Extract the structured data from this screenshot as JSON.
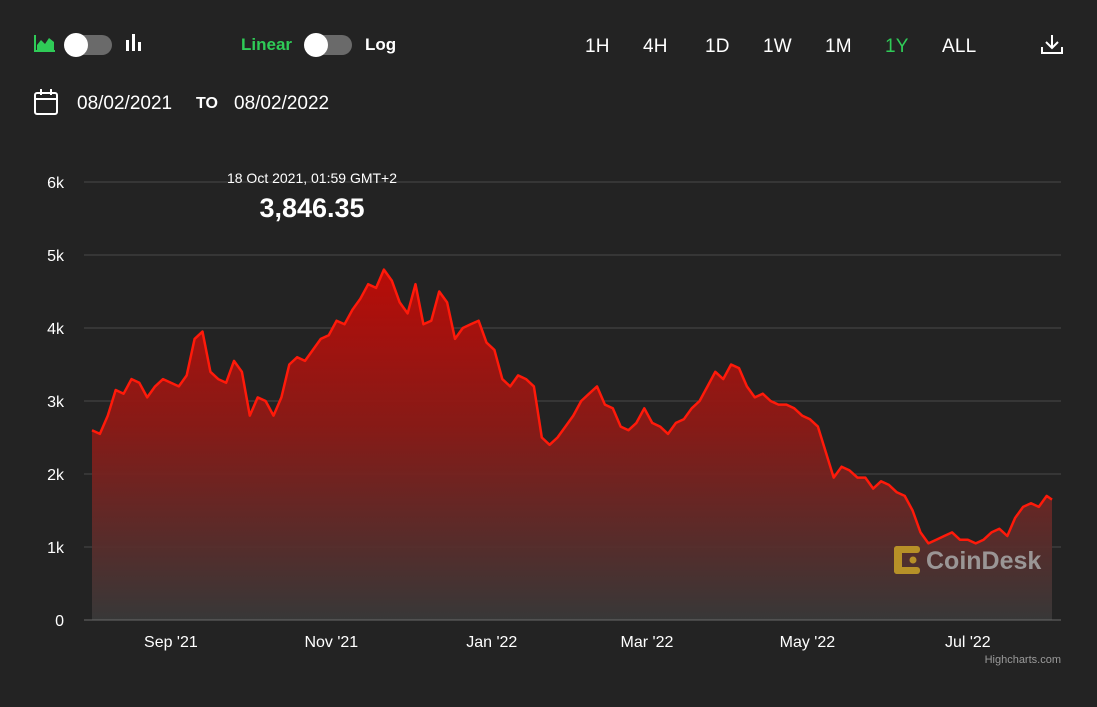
{
  "toolbar": {
    "chart_type_icons": [
      "area-chart-icon",
      "bar-chart-icon"
    ],
    "scale_linear_label": "Linear",
    "scale_log_label": "Log",
    "ranges": [
      "1H",
      "4H",
      "1D",
      "1W",
      "1M",
      "1Y",
      "ALL"
    ],
    "active_range": "1Y",
    "download_icon": "download-icon"
  },
  "date_range": {
    "from": "08/02/2021",
    "to_label": "TO",
    "to": "08/02/2022"
  },
  "tooltip": {
    "date": "18 Oct 2021, 01:59 GMT+2",
    "value": "3,846.35"
  },
  "watermark": "CoinDesk",
  "credits": "Highcharts.com",
  "colors": {
    "accent": "#2fcb57",
    "line": "#ff1a0a",
    "background": "#232323"
  },
  "chart_data": {
    "type": "area",
    "x_range": [
      "2021-08-02",
      "2022-08-02"
    ],
    "ylim": [
      0,
      6000
    ],
    "y_ticks": [
      0,
      1000,
      2000,
      3000,
      4000,
      5000,
      6000
    ],
    "y_tick_labels": [
      "0",
      "1k",
      "2k",
      "3k",
      "4k",
      "5k",
      "6k"
    ],
    "x_ticks": [
      "2021-09-01",
      "2021-11-01",
      "2022-01-01",
      "2022-03-01",
      "2022-05-01",
      "2022-07-01"
    ],
    "x_tick_labels": [
      "Sep '21",
      "Nov '21",
      "Jan '22",
      "Mar '22",
      "May '22",
      "Jul '22"
    ],
    "grid": true,
    "x": [
      "2021-08-02",
      "2021-08-05",
      "2021-08-08",
      "2021-08-11",
      "2021-08-14",
      "2021-08-17",
      "2021-08-20",
      "2021-08-23",
      "2021-08-26",
      "2021-08-29",
      "2021-09-01",
      "2021-09-04",
      "2021-09-07",
      "2021-09-10",
      "2021-09-13",
      "2021-09-16",
      "2021-09-19",
      "2021-09-22",
      "2021-09-25",
      "2021-09-28",
      "2021-10-01",
      "2021-10-04",
      "2021-10-07",
      "2021-10-10",
      "2021-10-13",
      "2021-10-16",
      "2021-10-19",
      "2021-10-22",
      "2021-10-25",
      "2021-10-28",
      "2021-10-31",
      "2021-11-03",
      "2021-11-06",
      "2021-11-09",
      "2021-11-12",
      "2021-11-15",
      "2021-11-18",
      "2021-11-21",
      "2021-11-24",
      "2021-11-27",
      "2021-11-30",
      "2021-12-03",
      "2021-12-06",
      "2021-12-09",
      "2021-12-12",
      "2021-12-15",
      "2021-12-18",
      "2021-12-21",
      "2021-12-24",
      "2021-12-27",
      "2021-12-30",
      "2022-01-02",
      "2022-01-05",
      "2022-01-08",
      "2022-01-11",
      "2022-01-14",
      "2022-01-17",
      "2022-01-20",
      "2022-01-23",
      "2022-01-26",
      "2022-01-29",
      "2022-02-01",
      "2022-02-04",
      "2022-02-07",
      "2022-02-10",
      "2022-02-13",
      "2022-02-16",
      "2022-02-19",
      "2022-02-22",
      "2022-02-25",
      "2022-02-28",
      "2022-03-03",
      "2022-03-06",
      "2022-03-09",
      "2022-03-12",
      "2022-03-15",
      "2022-03-18",
      "2022-03-21",
      "2022-03-24",
      "2022-03-27",
      "2022-03-30",
      "2022-04-02",
      "2022-04-05",
      "2022-04-08",
      "2022-04-11",
      "2022-04-14",
      "2022-04-17",
      "2022-04-20",
      "2022-04-23",
      "2022-04-26",
      "2022-04-29",
      "2022-05-02",
      "2022-05-05",
      "2022-05-08",
      "2022-05-11",
      "2022-05-14",
      "2022-05-17",
      "2022-05-20",
      "2022-05-23",
      "2022-05-26",
      "2022-05-29",
      "2022-06-01",
      "2022-06-04",
      "2022-06-07",
      "2022-06-10",
      "2022-06-13",
      "2022-06-16",
      "2022-06-19",
      "2022-06-22",
      "2022-06-25",
      "2022-06-28",
      "2022-07-01",
      "2022-07-04",
      "2022-07-07",
      "2022-07-10",
      "2022-07-13",
      "2022-07-16",
      "2022-07-19",
      "2022-07-22",
      "2022-07-25",
      "2022-07-28",
      "2022-07-31",
      "2022-08-02"
    ],
    "values": [
      2600,
      2550,
      2800,
      3150,
      3100,
      3300,
      3250,
      3050,
      3200,
      3300,
      3250,
      3200,
      3350,
      3850,
      3950,
      3400,
      3300,
      3250,
      3550,
      3400,
      2800,
      3050,
      3000,
      2800,
      3050,
      3500,
      3600,
      3550,
      3700,
      3850,
      3900,
      4100,
      4050,
      4250,
      4400,
      4600,
      4550,
      4800,
      4650,
      4350,
      4200,
      4600,
      4050,
      4100,
      4500,
      4350,
      3850,
      4000,
      4050,
      4100,
      3800,
      3700,
      3300,
      3200,
      3350,
      3300,
      3200,
      2500,
      2400,
      2500,
      2650,
      2800,
      3000,
      3100,
      3200,
      2950,
      2900,
      2650,
      2600,
      2700,
      2900,
      2700,
      2650,
      2550,
      2700,
      2750,
      2900,
      3000,
      3200,
      3400,
      3300,
      3500,
      3450,
      3200,
      3050,
      3100,
      3000,
      2950,
      2950,
      2900,
      2800,
      2750,
      2650,
      2300,
      1950,
      2100,
      2050,
      1950,
      1950,
      1800,
      1900,
      1850,
      1750,
      1700,
      1500,
      1200,
      1050,
      1100,
      1150,
      1200,
      1100,
      1100,
      1050,
      1100,
      1200,
      1250,
      1150,
      1400,
      1550,
      1600,
      1550,
      1700,
      1650
    ]
  }
}
